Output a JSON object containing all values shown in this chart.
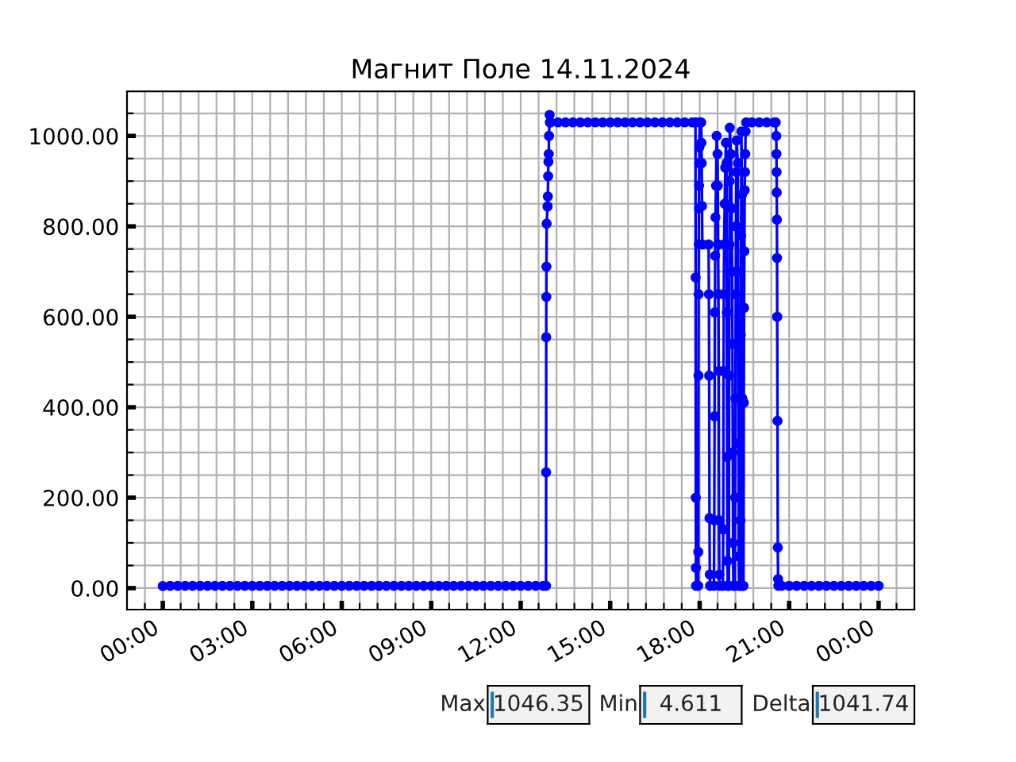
{
  "chart_data": {
    "type": "line",
    "title": "Магнит Поле 14.11.2024",
    "x": [
      0,
      0.25,
      0.5,
      0.75,
      1,
      1.25,
      1.5,
      1.75,
      2,
      2.25,
      2.5,
      2.75,
      3,
      3.25,
      3.5,
      3.75,
      4,
      4.25,
      4.5,
      4.75,
      5,
      5.25,
      5.5,
      5.75,
      6,
      6.25,
      6.5,
      6.75,
      7,
      7.25,
      7.5,
      7.75,
      8,
      8.25,
      8.5,
      8.75,
      9,
      9.25,
      9.5,
      9.75,
      10,
      10.25,
      10.5,
      10.75,
      11,
      11.25,
      11.5,
      11.75,
      12,
      12.25,
      12.5,
      12.75,
      12.85,
      12.853,
      12.856,
      12.86,
      12.863,
      12.87,
      12.9,
      12.91,
      12.92,
      12.93,
      12.94,
      12.95,
      12.97,
      12.98,
      13,
      13.25,
      13.5,
      13.75,
      14,
      14.25,
      14.5,
      14.75,
      15,
      15.25,
      15.5,
      15.75,
      16,
      16.25,
      16.5,
      16.75,
      17,
      17.25,
      17.5,
      17.75,
      17.86,
      17.865,
      17.87,
      17.875,
      17.88,
      17.95,
      17.955,
      17.96,
      17.965,
      17.97,
      17.975,
      17.98,
      17.985,
      17.99,
      18.0,
      18.05,
      18.06,
      18.07,
      18.08,
      18.09,
      18.3,
      18.31,
      18.32,
      18.33,
      18.34,
      18.35,
      18.48,
      18.49,
      18.5,
      18.51,
      18.52,
      18.53,
      18.55,
      18.57,
      18.6,
      18.61,
      18.62,
      18.63,
      18.64,
      18.65,
      18.66,
      18.67,
      18.78,
      18.79,
      18.8,
      18.81,
      18.82,
      18.84,
      18.86,
      18.88,
      18.9,
      18.91,
      18.92,
      18.93,
      18.94,
      18.98,
      18.99,
      19.0,
      19.005,
      19.01,
      19.05,
      19.07,
      19.09,
      19.1,
      19.11,
      19.12,
      19.13,
      19.18,
      19.19,
      19.2,
      19.21,
      19.22,
      19.23,
      19.24,
      19.28,
      19.29,
      19.3,
      19.31,
      19.32,
      19.36,
      19.37,
      19.38,
      19.39,
      19.4,
      19.42,
      19.43,
      19.44,
      19.47,
      19.48,
      19.49,
      19.5,
      19.51,
      19.52,
      19.53,
      19.54,
      19.56,
      19.75,
      20,
      20.25,
      20.5,
      20.55,
      20.57,
      20.575,
      20.58,
      20.585,
      20.59,
      20.595,
      20.6,
      20.61,
      20.62,
      20.63,
      20.64,
      20.75,
      21,
      21.25,
      21.5,
      21.75,
      22,
      22.25,
      22.5,
      22.75,
      23,
      23.25,
      23.5,
      23.75,
      24
    ],
    "series": [
      {
        "color": "#0000ff",
        "values": [
          4.611,
          5,
          5,
          5,
          5,
          5,
          5,
          5,
          5,
          5,
          5,
          5,
          5,
          5,
          5,
          5,
          5,
          5,
          5,
          5,
          5,
          5,
          5,
          5,
          5,
          5,
          5,
          5,
          5,
          5,
          5,
          5,
          5,
          5,
          5,
          5,
          5,
          5,
          5,
          5,
          5,
          5,
          5,
          5,
          5,
          5,
          5,
          5,
          5,
          5,
          5,
          5,
          5,
          256,
          555,
          644,
          711,
          806,
          844,
          866,
          911,
          943,
          960,
          1000,
          1046.35,
          1030,
          1030,
          1030,
          1030,
          1030,
          1030,
          1030,
          1030,
          1030,
          1030,
          1030,
          1030,
          1030,
          1030,
          1030,
          1030,
          1030,
          1030,
          1030,
          1030,
          1030,
          1030,
          687,
          200,
          45,
          5,
          5,
          80,
          470,
          650,
          760,
          840,
          890,
          940,
          975,
          1030,
          1030,
          985,
          940,
          845,
          760,
          760,
          650,
          470,
          155,
          30,
          5,
          5,
          150,
          380,
          610,
          735,
          820,
          890,
          1000,
          960,
          890,
          760,
          650,
          480,
          150,
          30,
          5,
          5,
          130,
          480,
          650,
          760,
          850,
          930,
          985,
          940,
          610,
          290,
          60,
          5,
          5,
          470,
          760,
          900,
          1018,
          960,
          840,
          700,
          540,
          300,
          100,
          5,
          5,
          200,
          420,
          650,
          800,
          920,
          990,
          940,
          700,
          320,
          70,
          5,
          5,
          150,
          560,
          780,
          1010,
          870,
          420,
          5,
          5,
          410,
          620,
          745,
          880,
          920,
          960,
          1010,
          1030,
          1030,
          1030,
          1030,
          1030,
          1030,
          1000,
          960,
          920,
          875,
          815,
          730,
          600,
          370,
          90,
          20,
          5,
          5,
          5,
          5,
          5,
          5,
          5,
          5,
          5,
          5,
          5,
          5,
          5,
          5,
          5
        ]
      }
    ],
    "xlim": [
      -1.2,
      25.2
    ],
    "ylim": [
      -47.5,
      1098.4
    ],
    "xticks": [
      {
        "value": -0.6,
        "label": null
      },
      {
        "value": 0,
        "label": "00:00"
      },
      {
        "value": 0.6,
        "label": null
      },
      {
        "value": 1.2,
        "label": null
      },
      {
        "value": 1.8,
        "label": null
      },
      {
        "value": 2.4,
        "label": null
      },
      {
        "value": 3,
        "label": "03:00"
      },
      {
        "value": 3.6,
        "label": null
      },
      {
        "value": 4.2,
        "label": null
      },
      {
        "value": 4.8,
        "label": null
      },
      {
        "value": 5.4,
        "label": null
      },
      {
        "value": 6,
        "label": "06:00"
      },
      {
        "value": 6.6,
        "label": null
      },
      {
        "value": 7.2,
        "label": null
      },
      {
        "value": 7.8,
        "label": null
      },
      {
        "value": 8.4,
        "label": null
      },
      {
        "value": 9,
        "label": "09:00"
      },
      {
        "value": 9.6,
        "label": null
      },
      {
        "value": 10.2,
        "label": null
      },
      {
        "value": 10.8,
        "label": null
      },
      {
        "value": 11.4,
        "label": null
      },
      {
        "value": 12,
        "label": "12:00"
      },
      {
        "value": 12.6,
        "label": null
      },
      {
        "value": 13.2,
        "label": null
      },
      {
        "value": 13.8,
        "label": null
      },
      {
        "value": 14.4,
        "label": null
      },
      {
        "value": 15,
        "label": "15:00"
      },
      {
        "value": 15.6,
        "label": null
      },
      {
        "value": 16.2,
        "label": null
      },
      {
        "value": 16.8,
        "label": null
      },
      {
        "value": 17.4,
        "label": null
      },
      {
        "value": 18,
        "label": "18:00"
      },
      {
        "value": 18.6,
        "label": null
      },
      {
        "value": 19.2,
        "label": null
      },
      {
        "value": 19.8,
        "label": null
      },
      {
        "value": 20.4,
        "label": null
      },
      {
        "value": 21,
        "label": "21:00"
      },
      {
        "value": 21.6,
        "label": null
      },
      {
        "value": 22.2,
        "label": null
      },
      {
        "value": 22.8,
        "label": null
      },
      {
        "value": 23.4,
        "label": null
      },
      {
        "value": 24,
        "label": "00:00"
      },
      {
        "value": 24.6,
        "label": null
      }
    ],
    "yticks": [
      {
        "value": 0,
        "label": "0.00"
      },
      {
        "value": 50,
        "label": null
      },
      {
        "value": 100,
        "label": null
      },
      {
        "value": 150,
        "label": null
      },
      {
        "value": 200,
        "label": "200.00"
      },
      {
        "value": 250,
        "label": null
      },
      {
        "value": 300,
        "label": null
      },
      {
        "value": 350,
        "label": null
      },
      {
        "value": 400,
        "label": "400.00"
      },
      {
        "value": 450,
        "label": null
      },
      {
        "value": 500,
        "label": null
      },
      {
        "value": 550,
        "label": null
      },
      {
        "value": 600,
        "label": "600.00"
      },
      {
        "value": 650,
        "label": null
      },
      {
        "value": 700,
        "label": null
      },
      {
        "value": 750,
        "label": null
      },
      {
        "value": 800,
        "label": "800.00"
      },
      {
        "value": 850,
        "label": null
      },
      {
        "value": 900,
        "label": null
      },
      {
        "value": 950,
        "label": null
      },
      {
        "value": 1000,
        "label": "1000.00"
      },
      {
        "value": 1050,
        "label": null
      }
    ],
    "grid": true,
    "marker": "circle",
    "line_style": "solid",
    "annotations": [
      "Max",
      "1046.35",
      "Min",
      "4.611",
      "Delta",
      "1041.74"
    ]
  }
}
